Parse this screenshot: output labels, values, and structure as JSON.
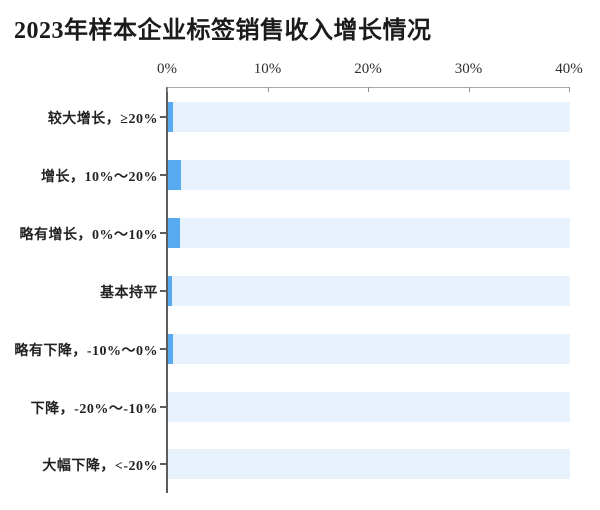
{
  "chart_data": {
    "type": "bar",
    "orientation": "horizontal",
    "title": "2023年样本企业标签销售收入增长情况",
    "categories": [
      "较大增长，≥20%",
      "增长，10%～20%",
      "略有增长，0%～10%",
      "基本持平",
      "略有下降，-10%～0%",
      "下降，-20%～-10%",
      "大幅下降，<-20%"
    ],
    "values": [
      0.5,
      1.3,
      1.2,
      0.4,
      0.45,
      0,
      0
    ],
    "value_unit": "%",
    "xlabel": "",
    "ylabel": "",
    "xlim": [
      0,
      40
    ],
    "x_ticks": [
      "0%",
      "10%",
      "20%",
      "30%",
      "40%"
    ],
    "x_tick_values": [
      0,
      10,
      20,
      30,
      40
    ],
    "grid": "off",
    "legend": "none",
    "colors": {
      "bar": "#58abf0",
      "bar_track_background": "#e8f2fc",
      "axis_line": "#a9a9a9",
      "category_axis_line": "#5c5c5c",
      "title_text": "#1b1b1b",
      "tick_text": "#2f2f2f",
      "category_text": "#222222",
      "page_background": "#ffffff"
    }
  }
}
